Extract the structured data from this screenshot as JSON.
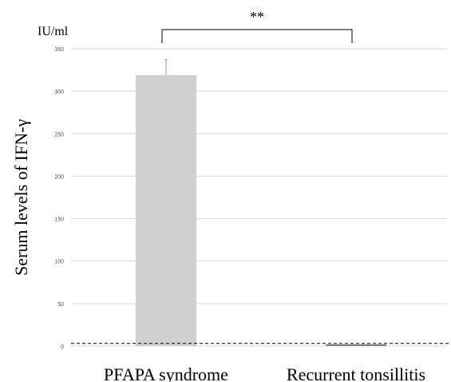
{
  "chart_data": {
    "type": "bar",
    "categories": [
      "PFAPA syndrome",
      "Recurrent tonsillitis"
    ],
    "values": [
      319,
      1
    ],
    "error_upper": [
      18,
      0
    ],
    "ylabel": "Serum levels of IFN-γ",
    "yunit": "IU/ml",
    "ylim": [
      0,
      350
    ],
    "yticks": [
      "0",
      "50",
      "100",
      "150",
      "200",
      "250",
      "300",
      "350"
    ],
    "reference_line": 3,
    "significance": "**",
    "grid": true,
    "legend": "none",
    "colors": {
      "bar": "#d0d0d0",
      "grid": "#d9d9d9",
      "error": "#999999",
      "text": "#000000"
    }
  }
}
